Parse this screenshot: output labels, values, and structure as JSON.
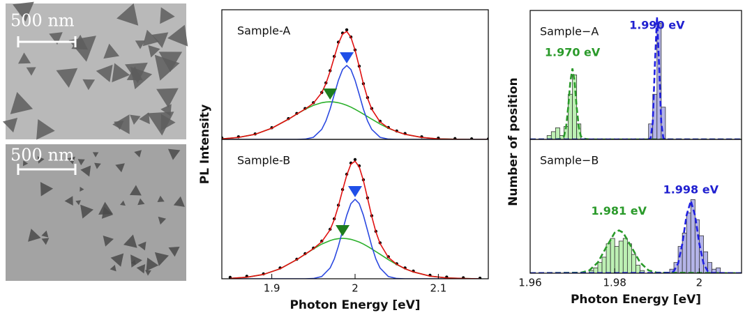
{
  "images": [
    {
      "scale_label": "500 nm"
    },
    {
      "scale_label": "500 nm"
    }
  ],
  "chart_data": [
    {
      "type": "line",
      "label": "Sample-A",
      "ylabel": "PL Intensity",
      "xlim": [
        1.84,
        2.16
      ],
      "ylim": [
        0,
        1
      ],
      "x": [
        1.84,
        1.86,
        1.88,
        1.9,
        1.92,
        1.93,
        1.94,
        1.95,
        1.96,
        1.965,
        1.97,
        1.975,
        1.98,
        1.985,
        1.99,
        1.995,
        2,
        2.005,
        2.01,
        2.015,
        2.02,
        2.03,
        2.04,
        2.05,
        2.06,
        2.08,
        2.1,
        2.12,
        2.14,
        2.16
      ],
      "series": [
        {
          "style": "dots",
          "color": "#000000",
          "values": [
            0.012,
            0.02,
            0.042,
            0.09,
            0.16,
            0.2,
            0.238,
            0.283,
            0.362,
            0.436,
            0.53,
            0.64,
            0.75,
            0.82,
            0.845,
            0.79,
            0.69,
            0.565,
            0.43,
            0.322,
            0.238,
            0.14,
            0.092,
            0.065,
            0.045,
            0.02,
            0.01,
            0.006,
            0.004,
            0.003
          ]
        },
        {
          "style": "line",
          "color": "#2bb02b",
          "values": [
            0.004,
            0.015,
            0.039,
            0.086,
            0.156,
            0.195,
            0.232,
            0.263,
            0.283,
            0.288,
            0.29,
            0.288,
            0.283,
            0.274,
            0.263,
            0.249,
            0.232,
            0.214,
            0.195,
            0.176,
            0.156,
            0.119,
            0.086,
            0.06,
            0.039,
            0.015,
            0.004,
            0.001,
            0,
            0
          ]
        },
        {
          "style": "line",
          "color": "#2a48e0",
          "values": [
            0,
            0,
            0,
            0,
            0,
            0,
            0.002,
            0.016,
            0.077,
            0.142,
            0.234,
            0.346,
            0.456,
            0.539,
            0.57,
            0.539,
            0.456,
            0.346,
            0.234,
            0.142,
            0.077,
            0.016,
            0.002,
            0,
            0,
            0,
            0,
            0,
            0,
            0
          ]
        },
        {
          "style": "line",
          "color": "#e01010",
          "values": [
            0.004,
            0.015,
            0.039,
            0.086,
            0.156,
            0.195,
            0.234,
            0.279,
            0.36,
            0.43,
            0.524,
            0.634,
            0.739,
            0.813,
            0.833,
            0.788,
            0.688,
            0.56,
            0.429,
            0.318,
            0.233,
            0.135,
            0.088,
            0.06,
            0.039,
            0.015,
            0.004,
            0.001,
            0,
            0
          ]
        }
      ],
      "markers": [
        {
          "x": 1.97,
          "y": 0.29,
          "color": "#1e7d1e"
        },
        {
          "x": 1.99,
          "y": 0.57,
          "color": "#1f4fe8"
        }
      ]
    },
    {
      "type": "line",
      "label": "Sample-B",
      "xlabel": "Photon Energy [eV]",
      "xlim": [
        1.84,
        2.16
      ],
      "ylim": [
        0,
        1
      ],
      "xticks": [
        1.9,
        2,
        2.1
      ],
      "x": [
        1.85,
        1.87,
        1.89,
        1.91,
        1.93,
        1.94,
        1.95,
        1.96,
        1.97,
        1.975,
        1.98,
        1.985,
        1.99,
        1.995,
        2,
        2.005,
        2.01,
        2.015,
        2.02,
        2.025,
        2.03,
        2.04,
        2.05,
        2.06,
        2.07,
        2.09,
        2.11,
        2.13,
        2.15
      ],
      "series": [
        {
          "style": "dots",
          "color": "#000000",
          "values": [
            0.01,
            0.018,
            0.035,
            0.078,
            0.14,
            0.18,
            0.22,
            0.27,
            0.355,
            0.43,
            0.528,
            0.64,
            0.75,
            0.83,
            0.855,
            0.81,
            0.71,
            0.58,
            0.452,
            0.34,
            0.258,
            0.158,
            0.108,
            0.078,
            0.055,
            0.025,
            0.012,
            0.007,
            0.004
          ]
        },
        {
          "style": "line",
          "color": "#2bb02b",
          "values": [
            0.003,
            0.011,
            0.031,
            0.072,
            0.137,
            0.176,
            0.214,
            0.249,
            0.274,
            0.283,
            0.288,
            0.29,
            0.288,
            0.283,
            0.274,
            0.263,
            0.249,
            0.232,
            0.214,
            0.195,
            0.176,
            0.137,
            0.102,
            0.072,
            0.049,
            0.019,
            0.006,
            0.002,
            0
          ]
        },
        {
          "style": "line",
          "color": "#2a48e0",
          "values": [
            0,
            0,
            0,
            0,
            0,
            0,
            0.002,
            0.016,
            0.077,
            0.142,
            0.234,
            0.346,
            0.456,
            0.539,
            0.57,
            0.539,
            0.456,
            0.346,
            0.234,
            0.142,
            0.077,
            0.016,
            0.002,
            0,
            0,
            0,
            0,
            0,
            0
          ]
        },
        {
          "style": "line",
          "color": "#e01010",
          "values": [
            0.003,
            0.011,
            0.031,
            0.072,
            0.137,
            0.176,
            0.216,
            0.265,
            0.351,
            0.425,
            0.522,
            0.636,
            0.744,
            0.822,
            0.844,
            0.802,
            0.705,
            0.578,
            0.448,
            0.337,
            0.253,
            0.153,
            0.104,
            0.072,
            0.049,
            0.019,
            0.006,
            0.002,
            0
          ]
        }
      ],
      "markers": [
        {
          "x": 1.985,
          "y": 0.29,
          "color": "#1e7d1e"
        },
        {
          "x": 2,
          "y": 0.57,
          "color": "#1f4fe8"
        }
      ]
    },
    {
      "type": "histogram",
      "label": "Sample−A",
      "xlim": [
        1.96,
        2.01
      ],
      "ylim": [
        0,
        100
      ],
      "series": [
        {
          "color": "#bdf0b4",
          "edgecolor": "#333333",
          "bins": [
            1.964,
            1.965,
            1.966,
            1.967,
            1.968,
            1.969,
            1.97,
            1.971,
            1.972
          ],
          "values": [
            3,
            6,
            9,
            3,
            10,
            35,
            50,
            12
          ],
          "fit": {
            "color": "#2a9a2a",
            "x": [
              1.96,
              1.966,
              1.967,
              1.968,
              1.9685,
              1.969,
              1.9695,
              1.97,
              1.9705,
              1.971,
              1.9715,
              1.972,
              1.973,
              1.974,
              2.01
            ],
            "values": [
              0,
              0,
              0.4,
              2.4,
              9.5,
              25,
              45,
              55,
              45,
              25,
              9.5,
              2.4,
              0.4,
              0,
              0
            ]
          }
        },
        {
          "color": "#b4b4e8",
          "edgecolor": "#333333",
          "bins": [
            1.988,
            1.989,
            1.99,
            1.991,
            1.992
          ],
          "values": [
            12,
            35,
            90,
            25
          ],
          "fit": {
            "color": "#2020e0",
            "x": [
              1.96,
              1.988,
              1.9885,
              1.989,
              1.9895,
              1.99,
              1.9905,
              1.991,
              1.9915,
              1.992,
              2.01
            ],
            "values": [
              0,
              0,
              1,
              13,
              58,
              95,
              58,
              13,
              1,
              0,
              0
            ]
          }
        }
      ],
      "annotations": [
        {
          "text": "1.970 eV",
          "x": 1.97,
          "y": 67,
          "color": "#2a9a2a"
        },
        {
          "text": "1.990 eV",
          "x": 1.99,
          "y": 88,
          "color": "#2020d0"
        }
      ]
    },
    {
      "type": "histogram",
      "label": "Sample−B",
      "xlabel": "Photon Energy [eV]",
      "ylabel": "Number of position",
      "xlim": [
        1.96,
        2.01
      ],
      "ylim": [
        0,
        100
      ],
      "xticks": [
        1.96,
        1.98,
        2
      ],
      "series": [
        {
          "color": "#bdf0b4",
          "edgecolor": "#333333",
          "bins": [
            1.974,
            1.975,
            1.976,
            1.977,
            1.978,
            1.979,
            1.98,
            1.981,
            1.982,
            1.983,
            1.984,
            1.985,
            1.986,
            1.987
          ],
          "values": [
            2,
            4,
            8,
            12,
            22,
            26,
            20,
            24,
            26,
            22,
            14,
            6,
            2
          ],
          "fit": {
            "color": "#2a9a2a",
            "x": [
              1.96,
              1.972,
              1.974,
              1.976,
              1.978,
              1.98,
              1.981,
              1.982,
              1.984,
              1.986,
              1.988,
              1.99,
              2.01
            ],
            "values": [
              0,
              0.4,
              2.1,
              8,
              19.4,
              30.3,
              32,
              30.3,
              19.4,
              8,
              2.1,
              0.4,
              0
            ]
          }
        },
        {
          "color": "#b4b4e8",
          "edgecolor": "#333333",
          "bins": [
            1.993,
            1.994,
            1.995,
            1.996,
            1.997,
            1.998,
            1.999,
            2,
            2.001,
            2.002,
            2.003,
            2.004,
            2.005
          ],
          "values": [
            3,
            8,
            20,
            30,
            45,
            55,
            40,
            28,
            16,
            8,
            3,
            4
          ],
          "fit": {
            "color": "#2020e0",
            "x": [
              1.96,
              1.993,
              1.994,
              1.995,
              1.996,
              1.997,
              1.998,
              1.999,
              2,
              2.001,
              2.002,
              2.003,
              2.01
            ],
            "values": [
              0,
              0.2,
              1.5,
              7.3,
              22.2,
              43.3,
              54,
              43.3,
              22.2,
              7.3,
              1.5,
              0.2,
              0
            ]
          }
        }
      ],
      "annotations": [
        {
          "text": "1.981 eV",
          "x": 1.981,
          "y": 46,
          "color": "#2a9a2a"
        },
        {
          "text": "1.998 eV",
          "x": 1.998,
          "y": 62,
          "color": "#2020d0"
        }
      ]
    }
  ]
}
